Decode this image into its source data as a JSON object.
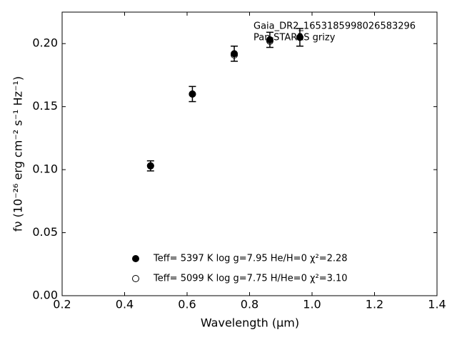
{
  "chart_data": {
    "type": "scatter",
    "annotation": [
      "Gaia_DR2_1653185998026583296",
      "Pan-STARRS grizy"
    ],
    "xlabel": "Wavelength (μm)",
    "ylabel": "fν (10⁻²⁶ erg cm⁻² s⁻¹ Hz⁻¹)",
    "series": [
      {
        "name": "Teff=  5099 K  log g=7.75  H/He=0  χ²=3.10",
        "color": "#000000",
        "filled": false,
        "x": [
          0.483,
          0.617,
          0.751,
          0.865,
          0.961
        ],
        "values": [
          0.103,
          0.16,
          0.191,
          0.202,
          0.205
        ]
      },
      {
        "name": "Teff=  5397 K  log g=7.95  He/H=0  χ²=2.28",
        "color": "#000000",
        "filled": true,
        "x": [
          0.483,
          0.617,
          0.751,
          0.865,
          0.961
        ],
        "values": [
          0.103,
          0.16,
          0.192,
          0.203,
          0.205
        ],
        "yerr": [
          0.004,
          0.006,
          0.006,
          0.006,
          0.007
        ]
      }
    ],
    "legend_order": [
      1,
      0
    ],
    "xlim": [
      0.2,
      1.4
    ],
    "xticks": [
      0.2,
      0.4,
      0.6,
      0.8,
      {
        "value": 1,
        "label": "1.0"
      },
      1.2,
      1.4
    ],
    "ylim": [
      0,
      0.225
    ],
    "yticks": [
      {
        "value": 0,
        "label": "0.00"
      },
      0.05,
      {
        "value": 0.1,
        "label": "0.10"
      },
      0.15,
      {
        "value": 0.2,
        "label": "0.20"
      }
    ]
  }
}
